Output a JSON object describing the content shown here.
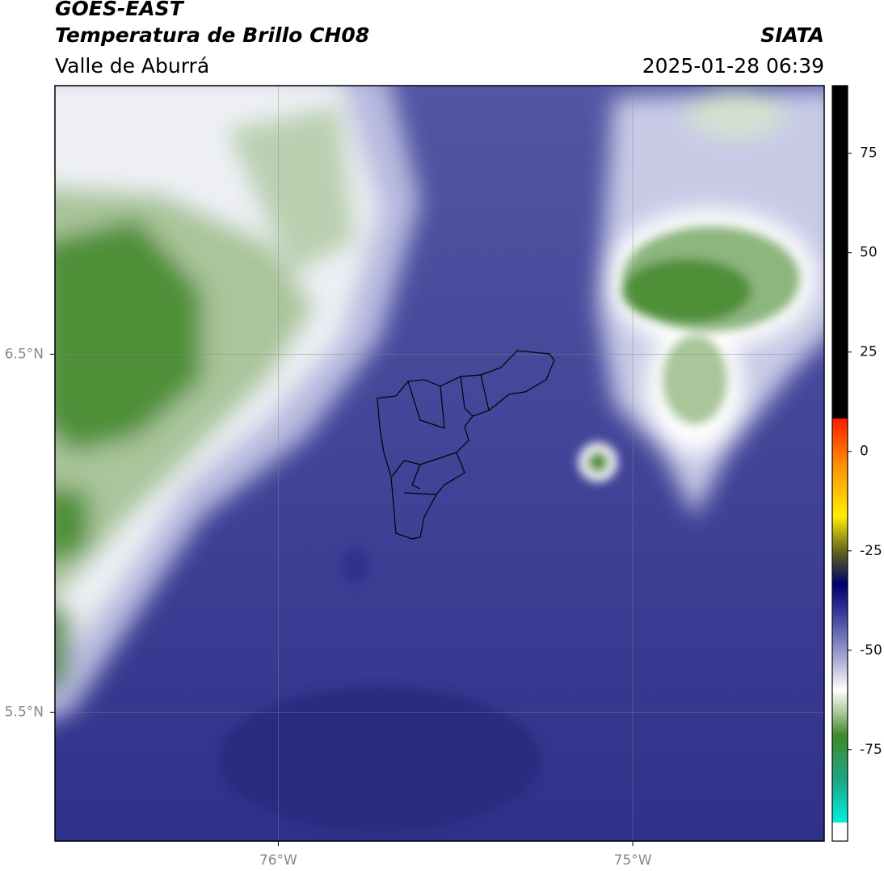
{
  "header": {
    "title": "GOES-EAST",
    "subtitle": "Temperatura de Brillo CH08",
    "region": "Valle de Aburrá",
    "source": "SIATA",
    "datetime": "2025-01-28 06:39"
  },
  "chart_data": {
    "type": "map",
    "xlim": [
      -76.63,
      -74.46
    ],
    "ylim": [
      5.14,
      7.25
    ],
    "xticks": [
      {
        "value": -76,
        "label": "76°W"
      },
      {
        "value": -75,
        "label": "75°W"
      }
    ],
    "yticks": [
      {
        "value": 6.5,
        "label": "6.5°N"
      },
      {
        "value": 5.5,
        "label": "5.5°N"
      }
    ],
    "grid": true,
    "colorbar": {
      "lim": [
        -98,
        92
      ],
      "ticks": [
        75,
        50,
        25,
        0,
        -25,
        -50,
        -75
      ]
    }
  }
}
